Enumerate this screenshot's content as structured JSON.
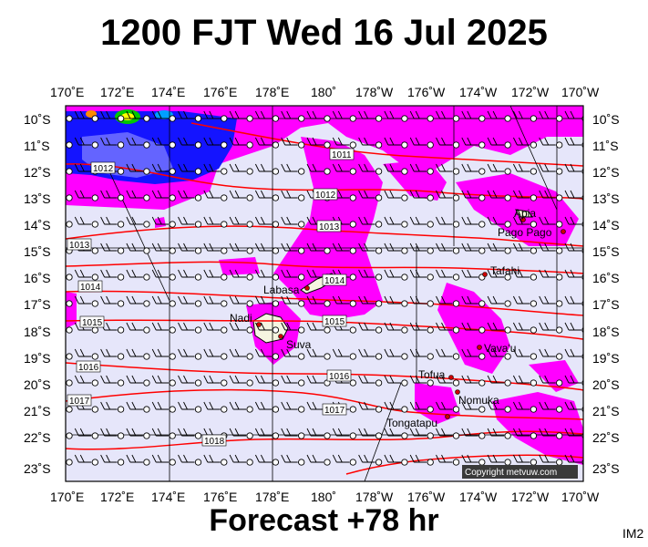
{
  "header": {
    "title": "1200 FJT Wed 16 Jul 2025"
  },
  "footer": {
    "forecast": "Forecast +78 hr",
    "product_code": "IM2"
  },
  "map": {
    "lon_labels_top": [
      "170˚E",
      "172˚E",
      "174˚E",
      "176˚E",
      "178˚E",
      "180˚",
      "178˚W",
      "176˚W",
      "174˚W",
      "172˚W",
      "170˚W"
    ],
    "lon_labels_bottom": [
      "170˚E",
      "172˚E",
      "174˚E",
      "176˚E",
      "178˚E",
      "180˚",
      "178˚W",
      "176˚W",
      "174˚W",
      "172˚W",
      "170˚W"
    ],
    "lat_labels": [
      "10˚S",
      "11˚S",
      "12˚S",
      "13˚S",
      "14˚S",
      "15˚S",
      "16˚S",
      "17˚S",
      "18˚S",
      "19˚S",
      "20˚S",
      "21˚S",
      "22˚S",
      "23˚S"
    ],
    "isobar_labels": [
      "1011",
      "1012",
      "1012",
      "1013",
      "1013",
      "1014",
      "1014",
      "1015",
      "1015",
      "1016",
      "1016",
      "1017",
      "1017",
      "1018"
    ],
    "places": [
      "Apia",
      "Pago Pago",
      "Tafahi",
      "Labasa",
      "Nadi",
      "Suva",
      "Vava'u",
      "Tofua",
      "Nomuka",
      "Tongatapu"
    ],
    "copyright": "Copyright metvuw.com",
    "colors": {
      "background": "#e6e6fa",
      "precip_light": "#ff00ff",
      "precip_medium": "#1414ff",
      "precip_heavy": "#00c800",
      "isobar": "#ff0000",
      "land": "#f5f5e0"
    }
  }
}
